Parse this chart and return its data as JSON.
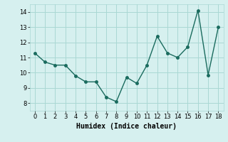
{
  "x": [
    0,
    1,
    2,
    3,
    4,
    5,
    6,
    7,
    8,
    9,
    10,
    11,
    12,
    13,
    14,
    15,
    16,
    17,
    18
  ],
  "y": [
    11.3,
    10.7,
    10.5,
    10.5,
    9.8,
    9.4,
    9.4,
    8.4,
    8.1,
    9.7,
    9.3,
    10.5,
    12.4,
    11.3,
    11.0,
    11.7,
    14.1,
    9.85,
    13.0
  ],
  "line_color": "#1a6b5e",
  "marker_color": "#1a6b5e",
  "bg_color": "#d6f0ef",
  "grid_color": "#aad8d4",
  "xlabel": "Humidex (Indice chaleur)",
  "ylim": [
    7.5,
    14.5
  ],
  "xlim": [
    -0.5,
    18.5
  ],
  "yticks": [
    8,
    9,
    10,
    11,
    12,
    13,
    14
  ],
  "xticks": [
    0,
    1,
    2,
    3,
    4,
    5,
    6,
    7,
    8,
    9,
    10,
    11,
    12,
    13,
    14,
    15,
    16,
    17,
    18
  ],
  "tick_fontsize": 6,
  "xlabel_fontsize": 7,
  "linewidth": 1.0,
  "markersize": 2.5
}
